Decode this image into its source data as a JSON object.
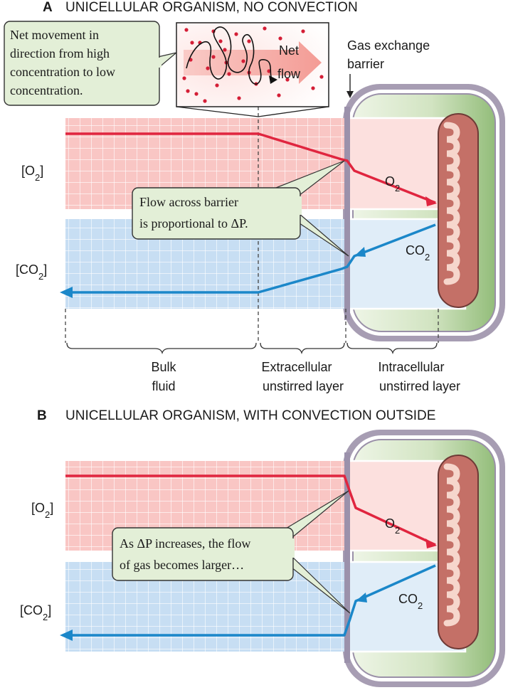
{
  "panel_a": {
    "letter": "A",
    "title": "UNICELLULAR ORGANISM, NO CONVECTION",
    "inset_callout": [
      "Net movement in",
      "direction from high",
      "concentration to low",
      "concentration."
    ],
    "net_flow_label": [
      "Net",
      "flow"
    ],
    "barrier_label": [
      "Gas exchange",
      "barrier"
    ],
    "o2_axis": "[O2]",
    "co2_axis": "[CO2]",
    "o2_gas": "O2",
    "co2_gas": "CO2",
    "flow_callout": [
      "Flow across barrier",
      "is proportional to ΔP."
    ],
    "region_labels": {
      "bulk": [
        "Bulk",
        "fluid"
      ],
      "extracellular": [
        "Extracellular",
        "unstirred layer"
      ],
      "intracellular": [
        "Intracellular",
        "unstirred layer"
      ]
    }
  },
  "panel_b": {
    "letter": "B",
    "title": "UNICELLULAR ORGANISM, WITH CONVECTION OUTSIDE",
    "o2_axis": "[O2]",
    "co2_axis": "[CO2]",
    "o2_gas": "O2",
    "co2_gas": "CO2",
    "flow_callout": [
      "As ΔP increases, the flow",
      "of gas becomes larger…"
    ]
  },
  "colors": {
    "o2_line": "#e0253f",
    "co2_line": "#1b87c9",
    "o2_bg": "#f9c6c4",
    "co2_bg": "#c7def3",
    "cell_interior": "#bcd6a8",
    "cell_wall": "#a59bb0",
    "mitochondrion": "#d2817a",
    "callout_bg": "#e3efd7"
  }
}
